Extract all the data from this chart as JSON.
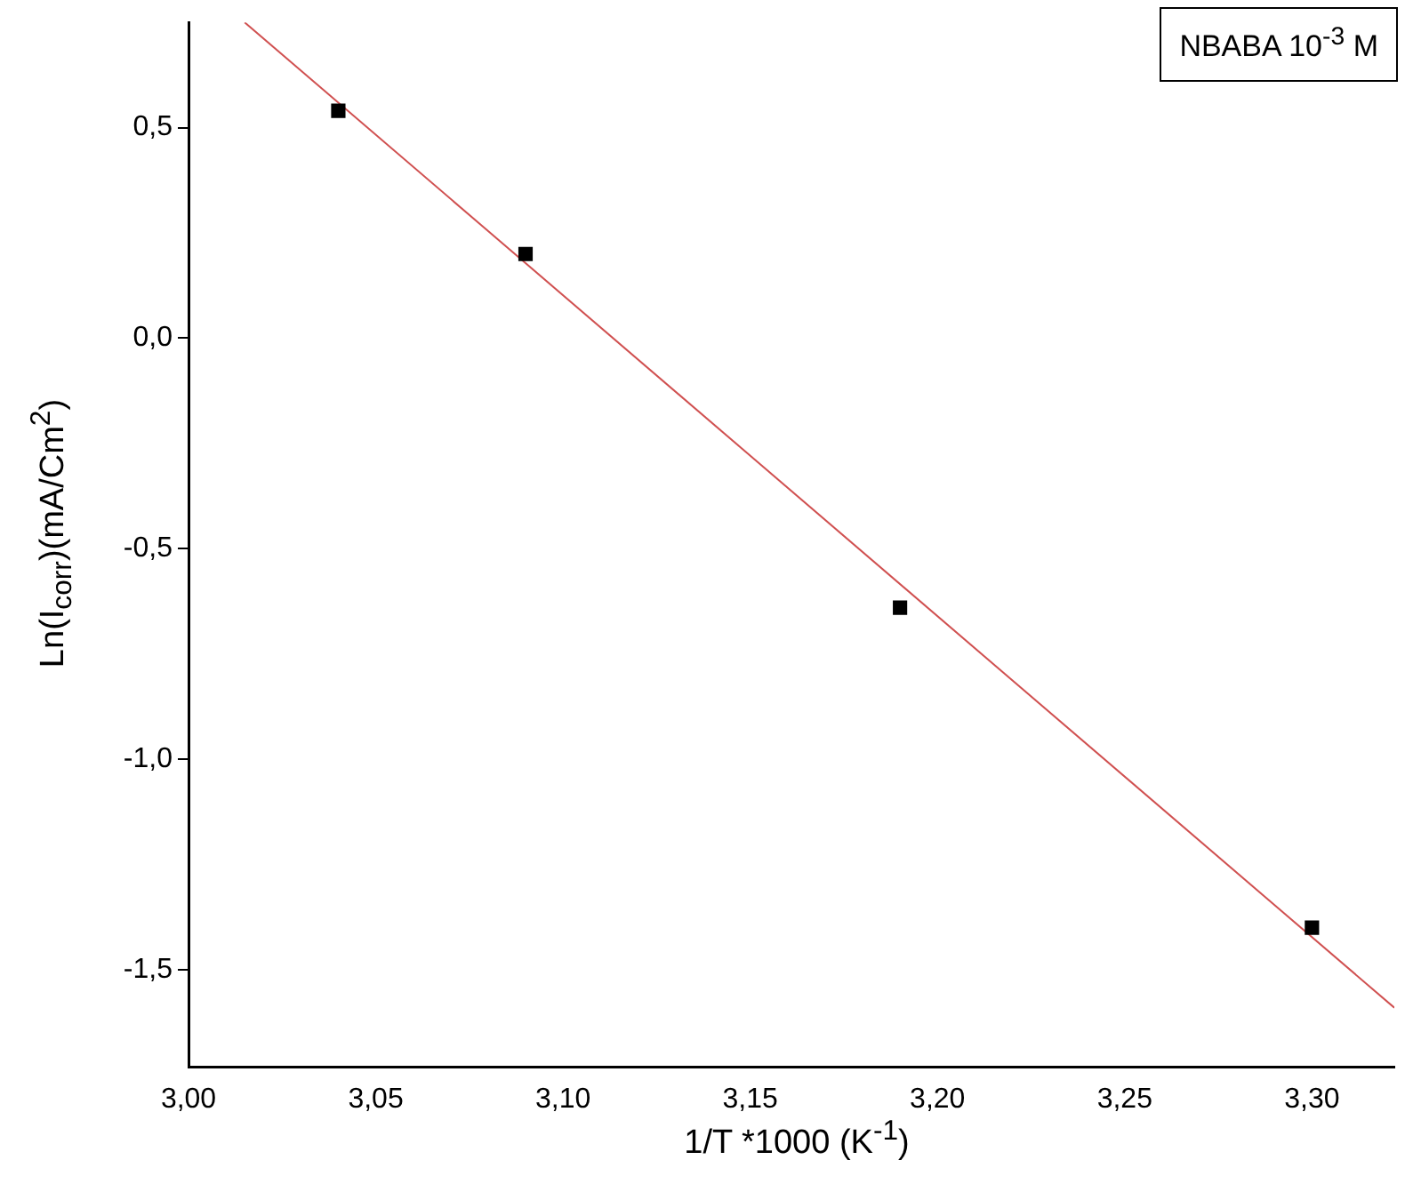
{
  "chart_data": {
    "type": "scatter",
    "legend_title": "NBABA 10$^{-3}$ M",
    "xlabel": "1/T *1000 (K$^{-1}$)",
    "ylabel": "Ln(I$_{corr}$)(mA/Cm$^{2}$)",
    "xlim": [
      3.0,
      3.322
    ],
    "ylim": [
      -1.73,
      0.75
    ],
    "xticks": [
      {
        "value": 3.0,
        "label": "3,00"
      },
      {
        "value": 3.05,
        "label": "3,05"
      },
      {
        "value": 3.1,
        "label": "3,10"
      },
      {
        "value": 3.15,
        "label": "3,15"
      },
      {
        "value": 3.2,
        "label": "3,20"
      },
      {
        "value": 3.25,
        "label": "3,25"
      },
      {
        "value": 3.3,
        "label": "3,30"
      }
    ],
    "yticks": [
      {
        "value": -1.5,
        "label": "-1,5"
      },
      {
        "value": -1.0,
        "label": "-1,0"
      },
      {
        "value": -0.5,
        "label": "-0,5"
      },
      {
        "value": 0.0,
        "label": "0,0"
      },
      {
        "value": 0.5,
        "label": "0,5"
      }
    ],
    "grid": false,
    "marker": "square",
    "series": [
      {
        "type": "scatter",
        "color": "#000000",
        "x": [
          3.04,
          3.09,
          3.19,
          3.3
        ],
        "values": [
          0.54,
          0.2,
          -0.64,
          -1.4
        ]
      },
      {
        "type": "line",
        "color": "#d05050",
        "marker": "none",
        "x": [
          3.015,
          3.322
        ],
        "values": [
          0.75,
          -1.59
        ]
      }
    ]
  }
}
